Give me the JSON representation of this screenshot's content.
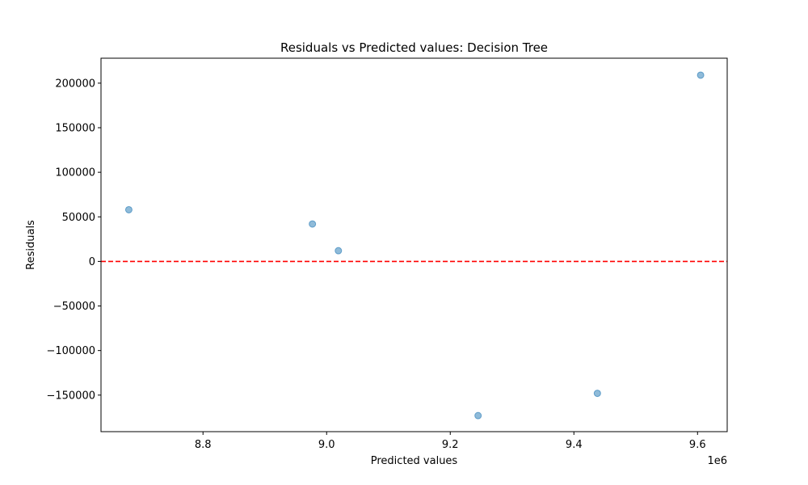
{
  "chart_data": {
    "type": "scatter",
    "title": "Residuals vs Predicted values: Decision Tree",
    "xlabel": "Predicted values",
    "ylabel": "Residuals",
    "x_offset_label": "1e6",
    "xlim": [
      8.635,
      9.648
    ],
    "ylim": [
      -191000,
      228000
    ],
    "x_ticks": [
      8.8,
      9.0,
      9.2,
      9.4,
      9.6
    ],
    "x_tick_labels": [
      "8.8",
      "9.0",
      "9.2",
      "9.4",
      "9.6"
    ],
    "y_ticks": [
      200000,
      150000,
      100000,
      50000,
      0,
      -50000,
      -100000,
      -150000
    ],
    "y_tick_labels": [
      "200000",
      "150000",
      "100000",
      "50000",
      "0",
      "−50000",
      "−100000",
      "−150000"
    ],
    "reference_line": {
      "y": 0,
      "color": "#ff0000",
      "style": "dashed"
    },
    "grid": false,
    "marker_color": "#1f77b4",
    "points": [
      {
        "x": 8.68,
        "y": 58000
      },
      {
        "x": 8.977,
        "y": 42000
      },
      {
        "x": 9.019,
        "y": 12000
      },
      {
        "x": 9.245,
        "y": -173000
      },
      {
        "x": 9.438,
        "y": -148000
      },
      {
        "x": 9.605,
        "y": 209000
      }
    ]
  }
}
